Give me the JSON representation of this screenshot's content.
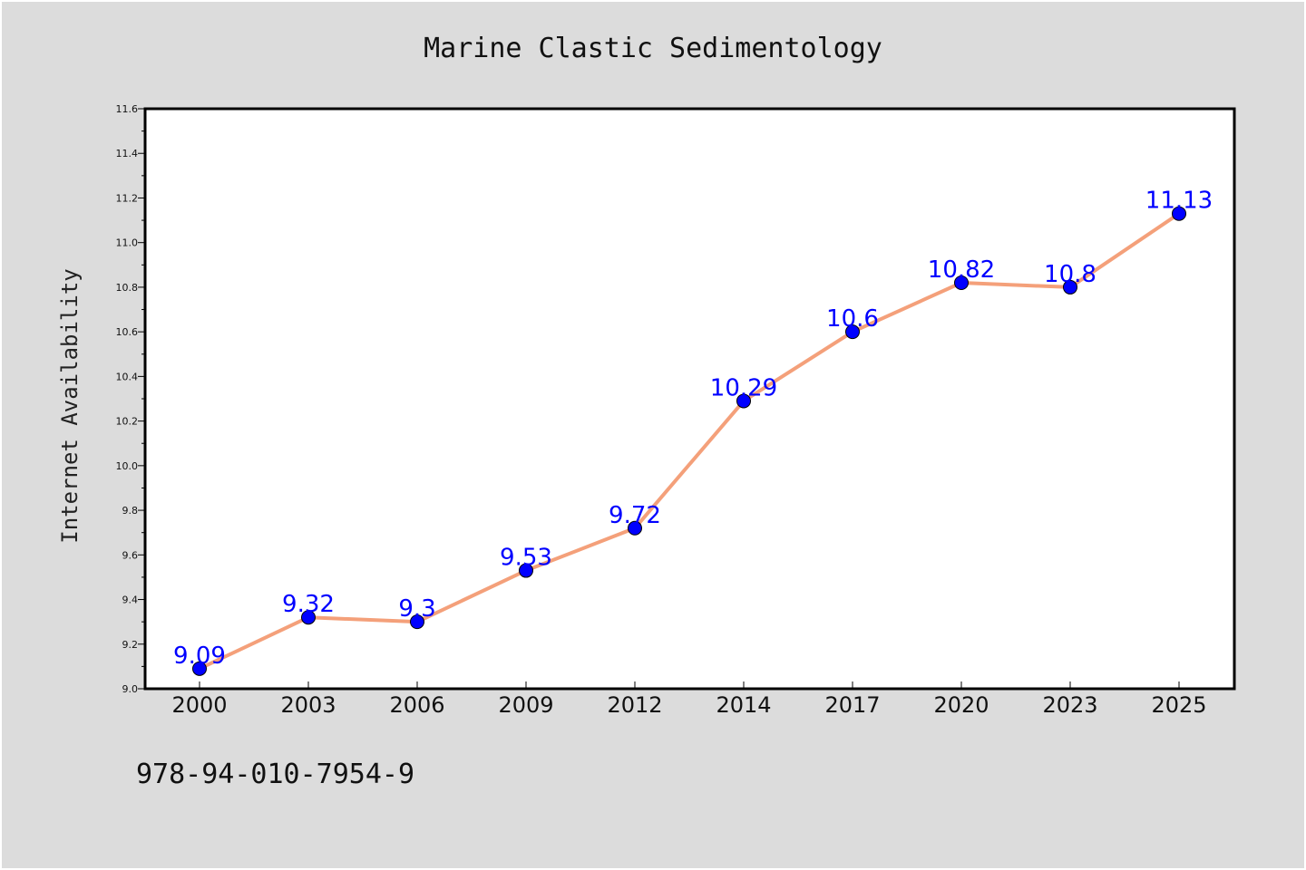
{
  "chart_data": {
    "type": "line",
    "title": "Marine Clastic Sedimentology",
    "xlabel": "",
    "ylabel": "Internet Availability",
    "categories": [
      "2000",
      "2003",
      "2006",
      "2009",
      "2012",
      "2014",
      "2017",
      "2020",
      "2023",
      "2025"
    ],
    "series": [
      {
        "values": [
          9.09,
          9.32,
          9.3,
          9.53,
          9.72,
          10.29,
          10.6,
          10.82,
          10.8,
          11.13
        ],
        "data_labels": [
          "9.09",
          "9.32",
          "9.3",
          "9.53",
          "9.72",
          "10.29",
          "10.6",
          "10.82",
          "10.8",
          "11.13"
        ]
      }
    ],
    "ylim": [
      9.0,
      11.6
    ],
    "yticks": [
      "9.0",
      "9.2",
      "9.4",
      "9.6",
      "9.8",
      "10.0",
      "10.2",
      "10.4",
      "10.6",
      "10.8",
      "11.0",
      "11.2",
      "11.4",
      "11.6"
    ],
    "grid": false,
    "legend": "none",
    "colors": {
      "line": "#f4a07a",
      "marker": "#0000ff",
      "data_label": "#0000ff",
      "background": "#dcdcdc",
      "plot_background": "#ffffff"
    }
  },
  "footer_text": "978-94-010-7954-9"
}
